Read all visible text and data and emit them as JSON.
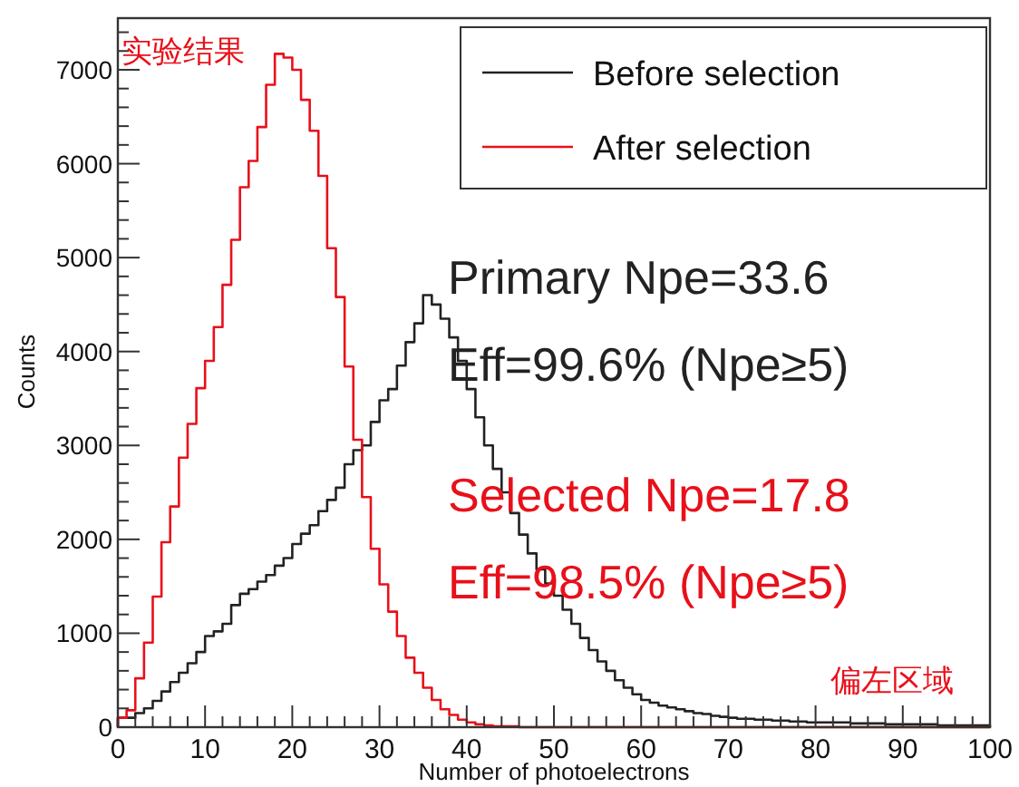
{
  "chart_data": {
    "type": "histogram",
    "xlabel": "Number of photoelectrons",
    "ylabel": "Counts",
    "xlim": [
      0,
      100
    ],
    "ylim": [
      0,
      7550
    ],
    "xticks": [
      0,
      10,
      20,
      30,
      40,
      50,
      60,
      70,
      80,
      90,
      100
    ],
    "yticks": [
      0,
      1000,
      2000,
      3000,
      4000,
      5000,
      6000,
      7000
    ],
    "legend": "top right",
    "bins": [
      0,
      1,
      2,
      3,
      4,
      5,
      6,
      7,
      8,
      9,
      10,
      11,
      12,
      13,
      14,
      15,
      16,
      17,
      18,
      19,
      20,
      21,
      22,
      23,
      24,
      25,
      26,
      27,
      28,
      29,
      30,
      31,
      32,
      33,
      34,
      35,
      36,
      37,
      38,
      39,
      40,
      41,
      42,
      43,
      44,
      45,
      46,
      47,
      48,
      49,
      50,
      51,
      52,
      53,
      54,
      55,
      56,
      57,
      58,
      59,
      60,
      61,
      62,
      63,
      64,
      65,
      66,
      67,
      68,
      69,
      70,
      71,
      72,
      73,
      74,
      75,
      76,
      77,
      78,
      79,
      80,
      81,
      82,
      83,
      84,
      85,
      86,
      87,
      88,
      89,
      90,
      91,
      92,
      93,
      94,
      95,
      96,
      97,
      98,
      99,
      100
    ],
    "series": [
      {
        "name": "Before selection",
        "color": "#222222",
        "values": [
          100,
          100,
          150,
          200,
          280,
          380,
          480,
          580,
          680,
          800,
          970,
          1020,
          1100,
          1300,
          1420,
          1470,
          1550,
          1620,
          1720,
          1800,
          1950,
          2060,
          2150,
          2300,
          2420,
          2550,
          2800,
          2950,
          3000,
          3250,
          3480,
          3600,
          3850,
          4100,
          4300,
          4600,
          4500,
          4350,
          4150,
          3900,
          3600,
          3300,
          3000,
          2750,
          2500,
          2280,
          2050,
          1850,
          1680,
          1530,
          1400,
          1250,
          1100,
          950,
          820,
          700,
          600,
          500,
          420,
          350,
          290,
          260,
          230,
          210,
          190,
          170,
          150,
          140,
          120,
          110,
          100,
          90,
          90,
          80,
          80,
          70,
          70,
          60,
          60,
          50,
          50,
          50,
          50,
          50,
          40,
          40,
          40,
          40,
          30,
          30,
          30,
          30,
          30,
          30,
          20,
          20,
          20,
          20,
          20,
          20
        ]
      },
      {
        "name": "After selection",
        "color": "#e8101a",
        "values": [
          100,
          180,
          520,
          900,
          1390,
          1970,
          2350,
          2870,
          3230,
          3610,
          3900,
          4260,
          4710,
          5190,
          5750,
          6030,
          6390,
          6840,
          7170,
          7130,
          7000,
          6680,
          6350,
          5870,
          5100,
          4580,
          3840,
          3060,
          2450,
          1900,
          1520,
          1230,
          970,
          740,
          580,
          420,
          290,
          190,
          130,
          80,
          50,
          30,
          20,
          10,
          10,
          10,
          0,
          0,
          0,
          0,
          0,
          0,
          0,
          0,
          0,
          0,
          0,
          0,
          0,
          0,
          0,
          0,
          0,
          0,
          0,
          0,
          0,
          0,
          0,
          0,
          0,
          0,
          0,
          0,
          0,
          0,
          0,
          0,
          0,
          0,
          0,
          0,
          0,
          0,
          0,
          0,
          0,
          0,
          0,
          0,
          0,
          0,
          0,
          0,
          0,
          0,
          0,
          0,
          0,
          0
        ]
      }
    ],
    "annotations": [
      "实验结果",
      "Primary Npe=33.6",
      "Eff=99.6% (Npe≥5)",
      "Selected Npe=17.8",
      "Eff=98.5% (Npe≥5)",
      "偏左区域"
    ]
  }
}
